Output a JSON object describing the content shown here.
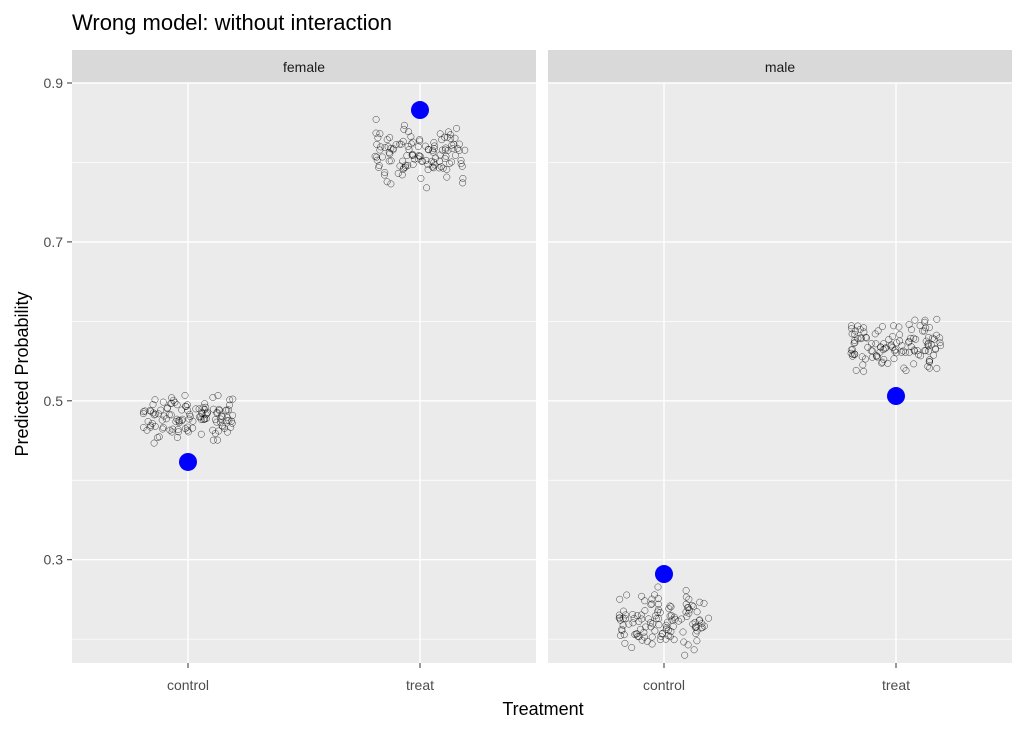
{
  "chart_data": {
    "type": "scatter",
    "title": "Wrong model: without interaction",
    "xlabel": "Treatment",
    "ylabel": "Predicted Probability",
    "categories": [
      "control",
      "treat"
    ],
    "facets": [
      "female",
      "male"
    ],
    "ylim": [
      0.17,
      0.9
    ],
    "yticks": [
      0.3,
      0.5,
      0.7,
      0.9
    ],
    "ytick_labels": [
      "0.3",
      "0.5",
      "0.7",
      "0.9"
    ],
    "grid": true,
    "summary_points": [
      {
        "facet": "female",
        "category": "control",
        "value": 0.423
      },
      {
        "facet": "female",
        "category": "treat",
        "value": 0.866
      },
      {
        "facet": "male",
        "category": "control",
        "value": 0.282
      },
      {
        "facet": "male",
        "category": "treat",
        "value": 0.506
      }
    ],
    "jitter_clusters": [
      {
        "facet": "female",
        "category": "control",
        "center": 0.478,
        "min": 0.437,
        "max": 0.521,
        "count": 120
      },
      {
        "facet": "female",
        "category": "treat",
        "center": 0.812,
        "min": 0.763,
        "max": 0.858,
        "count": 120
      },
      {
        "facet": "male",
        "category": "control",
        "center": 0.215,
        "min": 0.172,
        "max": 0.272,
        "count": 120
      },
      {
        "facet": "male",
        "category": "treat",
        "center": 0.57,
        "min": 0.523,
        "max": 0.617,
        "count": 120
      }
    ],
    "colors": {
      "summary_point": "#0000ff",
      "jitter_point_stroke": "#000000",
      "panel_background": "#ebebeb",
      "strip_background": "#d9d9d9",
      "grid_line": "#ffffff"
    }
  }
}
